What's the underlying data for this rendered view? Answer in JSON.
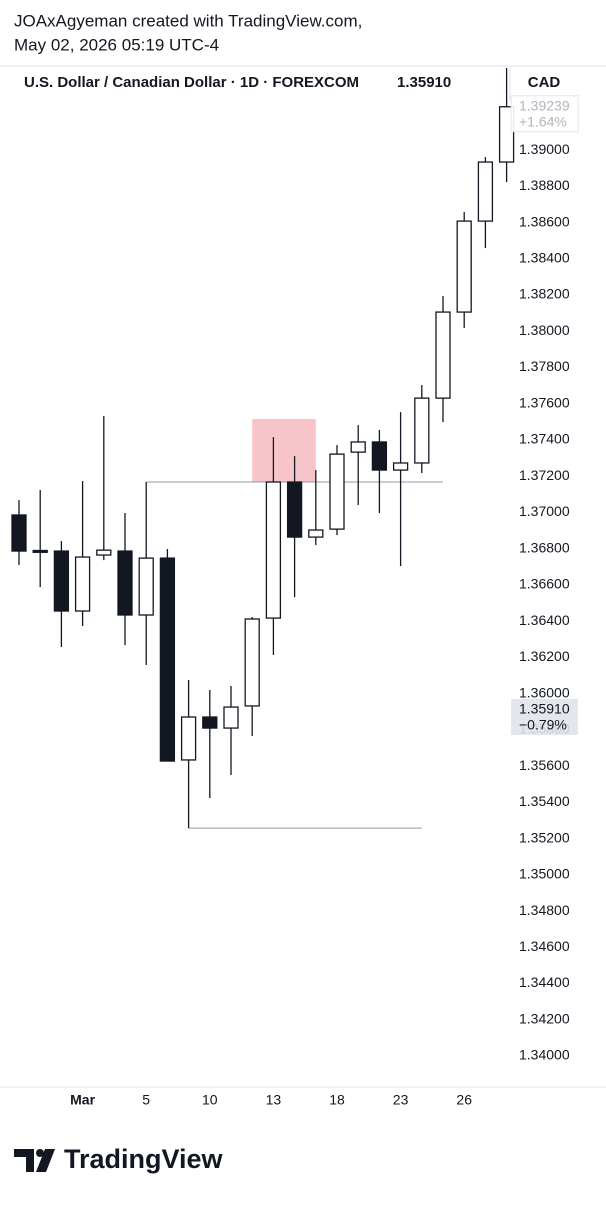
{
  "header": {
    "line1": "JOAxAgyeman created with TradingView.com,",
    "line2": "May 02, 2026 05:19 UTC-4"
  },
  "chart_data": {
    "type": "candlestick",
    "title": "U.S. Dollar / Canadian Dollar · 1D · FOREXCOM",
    "last": "1.35910",
    "currency": "CAD",
    "categories": [
      null,
      null,
      null,
      "Mar",
      null,
      null,
      "5",
      null,
      null,
      "10",
      null,
      null,
      "13",
      null,
      null,
      "18",
      null,
      null,
      "23",
      null,
      null,
      "26",
      null,
      null
    ],
    "open": [
      1.36986,
      1.3679,
      1.36787,
      1.36456,
      1.36765,
      1.36787,
      1.36434,
      1.36748,
      1.35634,
      1.35871,
      1.3581,
      1.35932,
      1.36417,
      1.37168,
      1.36864,
      1.36908,
      1.37333,
      1.37389,
      1.37234,
      1.37273,
      1.37631,
      1.38106,
      1.38608,
      1.38934
    ],
    "high": [
      1.37068,
      1.37124,
      1.36842,
      1.37173,
      1.37532,
      1.36997,
      1.37168,
      1.36798,
      1.36075,
      1.3602,
      1.36042,
      1.36423,
      1.37416,
      1.37311,
      1.37234,
      1.37372,
      1.37482,
      1.37455,
      1.37554,
      1.37703,
      1.38194,
      1.38658,
      1.38961,
      1.39453
    ],
    "low": [
      1.3671,
      1.36588,
      1.36257,
      1.36373,
      1.36737,
      1.36268,
      1.36158,
      1.35628,
      1.35258,
      1.35424,
      1.35551,
      1.35766,
      1.36213,
      1.36533,
      1.3682,
      1.36875,
      1.37041,
      1.36997,
      1.36704,
      1.37217,
      1.37499,
      1.38018,
      1.38459,
      1.38823
    ],
    "close": [
      1.36787,
      1.3678,
      1.36456,
      1.36754,
      1.36792,
      1.36434,
      1.36748,
      1.35628,
      1.35871,
      1.3581,
      1.35926,
      1.36412,
      1.37168,
      1.36864,
      1.36903,
      1.37322,
      1.37389,
      1.37234,
      1.37273,
      1.37631,
      1.38106,
      1.38608,
      1.38934,
      1.39239
    ],
    "up_color": "#ffffff",
    "down_color": "#131722",
    "ylim": [
      1.3384,
      1.39453
    ],
    "yticks": [
      {
        "value": 1.34,
        "label": "1.34000"
      },
      {
        "value": 1.342,
        "label": "1.34200"
      },
      {
        "value": 1.344,
        "label": "1.34400"
      },
      {
        "value": 1.346,
        "label": "1.34600"
      },
      {
        "value": 1.348,
        "label": "1.34800"
      },
      {
        "value": 1.35,
        "label": "1.35000"
      },
      {
        "value": 1.352,
        "label": "1.35200"
      },
      {
        "value": 1.354,
        "label": "1.35400"
      },
      {
        "value": 1.356,
        "label": "1.35600"
      },
      {
        "value": 1.358,
        "label": "1.35800"
      },
      {
        "value": 1.36,
        "label": "1.36000"
      },
      {
        "value": 1.362,
        "label": "1.36200"
      },
      {
        "value": 1.364,
        "label": "1.36400"
      },
      {
        "value": 1.366,
        "label": "1.36600"
      },
      {
        "value": 1.368,
        "label": "1.36800"
      },
      {
        "value": 1.37,
        "label": "1.37000"
      },
      {
        "value": 1.372,
        "label": "1.37200"
      },
      {
        "value": 1.374,
        "label": "1.37400"
      },
      {
        "value": 1.376,
        "label": "1.37600"
      },
      {
        "value": 1.378,
        "label": "1.37800"
      },
      {
        "value": 1.38,
        "label": "1.38000"
      },
      {
        "value": 1.382,
        "label": "1.38200"
      },
      {
        "value": 1.384,
        "label": "1.38400"
      },
      {
        "value": 1.386,
        "label": "1.38600"
      },
      {
        "value": 1.388,
        "label": "1.38800"
      },
      {
        "value": 1.39,
        "label": "1.39000"
      }
    ],
    "price_labels": [
      {
        "value": 1.39239,
        "label": "1.39239",
        "change": "+1.64%",
        "faded": true
      },
      {
        "value": 1.3591,
        "label": "1.35910",
        "change": "−0.79%",
        "faded": false
      }
    ],
    "hlines": [
      {
        "value": 1.37168,
        "from": 6,
        "to": 20
      },
      {
        "value": 1.35258,
        "from": 8,
        "to": 19
      }
    ],
    "zones": [
      {
        "low": 1.37168,
        "high": 1.37516,
        "from": 11,
        "to": 14,
        "color": "#f7c5c9"
      }
    ]
  },
  "footer": {
    "brand": "TradingView"
  }
}
